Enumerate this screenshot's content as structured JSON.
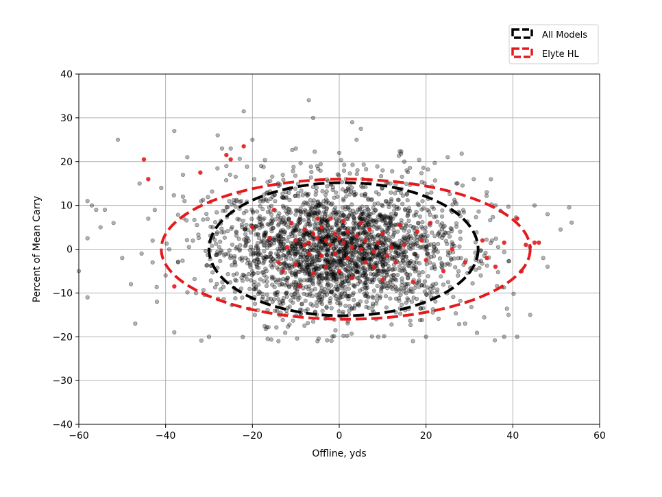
{
  "chart_data": {
    "type": "scatter",
    "title": "",
    "xlabel": "Offline, yds",
    "ylabel": "Percent of Mean Carry",
    "xlim": [
      -60,
      60
    ],
    "ylim": [
      -40,
      40
    ],
    "xticks": [
      -60,
      -40,
      -20,
      0,
      20,
      40,
      60
    ],
    "yticks": [
      -40,
      -30,
      -20,
      -10,
      0,
      10,
      20,
      30,
      40
    ],
    "xtick_labels": [
      "−60",
      "−40",
      "−20",
      "0",
      "20",
      "40",
      "60"
    ],
    "ytick_labels": [
      "−40",
      "−30",
      "−20",
      "−10",
      "0",
      "10",
      "20",
      "30",
      "40"
    ],
    "grid": true,
    "legend_position": "top-right",
    "legend": [
      {
        "label": "All Models",
        "color": "#000000",
        "style": "dashed-ellipse"
      },
      {
        "label": "Elyte HL",
        "color": "#e41a1c",
        "style": "dashed-ellipse"
      }
    ],
    "ellipses": [
      {
        "label": "All Models",
        "center": [
          1,
          0
        ],
        "semi_axis_x": 31,
        "semi_axis_y": 15.2,
        "color": "#000000"
      },
      {
        "label": "Elyte HL",
        "center": [
          1.5,
          0
        ],
        "semi_axis_x": 42.5,
        "semi_axis_y": 16,
        "color": "#e41a1c"
      }
    ],
    "series": [
      {
        "name": "All Models",
        "color": "#000000",
        "opacity": 0.3,
        "approx_count": 2500,
        "x_mean": 0,
        "x_sd": 14,
        "y_mean": 0,
        "y_sd": 7.5,
        "y_clip": [
          -21,
          34
        ],
        "points": [
          [
            -60,
            -5
          ],
          [
            -58,
            11
          ],
          [
            -57,
            10
          ],
          [
            -58,
            2.5
          ],
          [
            -58,
            -11
          ],
          [
            -56,
            9
          ],
          [
            -55,
            5
          ],
          [
            -54,
            9
          ],
          [
            -52,
            6
          ],
          [
            -51,
            25
          ],
          [
            -50,
            -2
          ],
          [
            -48,
            -8
          ],
          [
            -47,
            -17
          ],
          [
            -46,
            15
          ],
          [
            -44,
            7
          ],
          [
            -43,
            -3
          ],
          [
            -42,
            -12
          ],
          [
            -41,
            14
          ],
          [
            -40,
            -6
          ],
          [
            -38,
            27
          ],
          [
            -38,
            -19
          ],
          [
            -36,
            17
          ],
          [
            -36,
            12
          ],
          [
            -35,
            21
          ],
          [
            -33,
            -10
          ],
          [
            -30,
            -20
          ],
          [
            -28,
            26
          ],
          [
            -27,
            23
          ],
          [
            -26,
            19
          ],
          [
            -25,
            23
          ],
          [
            -22,
            31.5
          ],
          [
            -20,
            25
          ],
          [
            -18,
            19
          ],
          [
            -14,
            -21
          ],
          [
            -10,
            23
          ],
          [
            -7,
            34
          ],
          [
            -6,
            30
          ],
          [
            -5,
            -21
          ],
          [
            0,
            22
          ],
          [
            3,
            29
          ],
          [
            5,
            27.5
          ],
          [
            4,
            25
          ],
          [
            9,
            -20
          ],
          [
            10,
            18
          ],
          [
            15,
            20
          ],
          [
            17,
            -21
          ],
          [
            20,
            -20
          ],
          [
            25,
            21
          ],
          [
            27,
            15
          ],
          [
            29,
            -17
          ],
          [
            31,
            16
          ],
          [
            34,
            13
          ],
          [
            36,
            10
          ],
          [
            38,
            -20
          ],
          [
            39,
            -15
          ],
          [
            41,
            -20
          ],
          [
            44,
            -15
          ],
          [
            45,
            10
          ],
          [
            48,
            8
          ],
          [
            48,
            -4
          ],
          [
            51,
            4.5
          ],
          [
            47,
            -2
          ]
        ]
      },
      {
        "name": "Elyte HL",
        "color": "#e41a1c",
        "opacity": 0.9,
        "points": [
          [
            -45,
            20.5
          ],
          [
            -44,
            16
          ],
          [
            -38,
            -8.5
          ],
          [
            -32,
            17.5
          ],
          [
            -26,
            21.5
          ],
          [
            -25,
            20.5
          ],
          [
            -22,
            23.5
          ],
          [
            -20,
            5
          ],
          [
            -16,
            2.5
          ],
          [
            -15,
            9
          ],
          [
            -14,
            -3
          ],
          [
            -13,
            -5
          ],
          [
            -12,
            0.5
          ],
          [
            -11,
            6
          ],
          [
            -10,
            2
          ],
          [
            -10,
            -3.5
          ],
          [
            -9,
            -8.5
          ],
          [
            -8,
            4.5
          ],
          [
            -8,
            1
          ],
          [
            -7,
            -1
          ],
          [
            -7,
            1.5
          ],
          [
            -6,
            3.5
          ],
          [
            -6,
            -5.5
          ],
          [
            -5,
            7
          ],
          [
            -5,
            2.5
          ],
          [
            -4,
            -1.5
          ],
          [
            -4,
            5
          ],
          [
            -3,
            2
          ],
          [
            -3,
            -4
          ],
          [
            -2,
            1
          ],
          [
            -2,
            7
          ],
          [
            -1,
            3.5
          ],
          [
            -1,
            -1
          ],
          [
            0,
            2.5
          ],
          [
            0,
            -5
          ],
          [
            1,
            6.5
          ],
          [
            1,
            1.5
          ],
          [
            2,
            -2
          ],
          [
            2,
            4
          ],
          [
            3,
            -6.5
          ],
          [
            3,
            0.5
          ],
          [
            4,
            3
          ],
          [
            5,
            0
          ],
          [
            5,
            6
          ],
          [
            6,
            -3
          ],
          [
            6,
            2
          ],
          [
            7,
            4.5
          ],
          [
            8,
            -0.5
          ],
          [
            8,
            -4
          ],
          [
            9,
            1.5
          ],
          [
            10,
            -7
          ],
          [
            10,
            3.5
          ],
          [
            11,
            -1.5
          ],
          [
            12,
            0.5
          ],
          [
            13,
            -3
          ],
          [
            14,
            5.5
          ],
          [
            15,
            1
          ],
          [
            17,
            -7.5
          ],
          [
            18,
            4
          ],
          [
            19,
            2
          ],
          [
            20,
            -2.5
          ],
          [
            21,
            6
          ],
          [
            24,
            -5
          ],
          [
            26,
            0
          ],
          [
            29,
            -3
          ],
          [
            33,
            2
          ],
          [
            34,
            -2
          ],
          [
            36,
            -4
          ],
          [
            38,
            1.5
          ],
          [
            41,
            7
          ],
          [
            42,
            -5
          ],
          [
            43,
            1
          ],
          [
            45,
            1.5
          ],
          [
            46,
            1.5
          ]
        ]
      }
    ]
  }
}
